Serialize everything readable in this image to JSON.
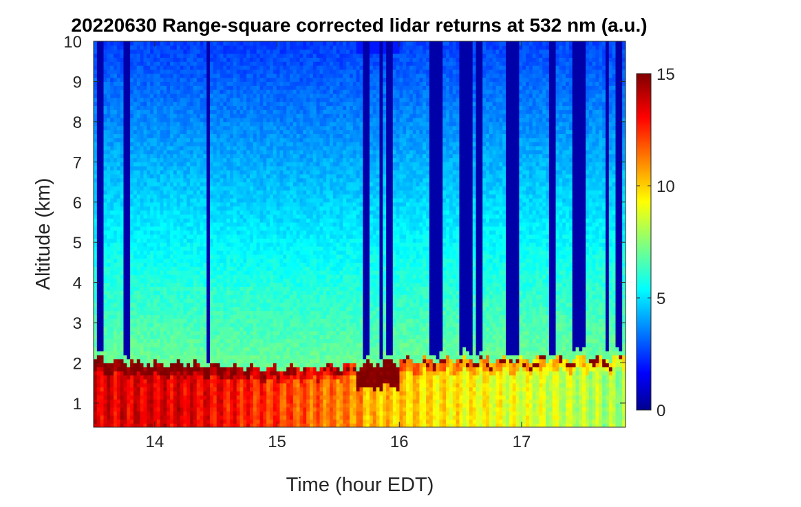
{
  "chart_data": {
    "type": "heatmap",
    "title": "20220630  Range-square corrected lidar returns at 532 nm (a.u.)",
    "xlabel": "Time (hour EDT)",
    "ylabel": "Altitude (km)",
    "xlim": [
      13.5,
      17.85
    ],
    "ylim": [
      0.4,
      10
    ],
    "xticks": [
      14,
      15,
      16,
      17
    ],
    "yticks": [
      1,
      2,
      3,
      4,
      5,
      6,
      7,
      8,
      9,
      10
    ],
    "colorbar": {
      "min": 0,
      "max": 15,
      "ticks": [
        0,
        5,
        10,
        15
      ],
      "colormap": "jet"
    },
    "boundary_layer_top_km": [
      {
        "t": 13.5,
        "h": 2.1
      },
      {
        "t": 14.0,
        "h": 2.0
      },
      {
        "t": 14.5,
        "h": 1.95
      },
      {
        "t": 15.0,
        "h": 1.85
      },
      {
        "t": 15.5,
        "h": 1.9
      },
      {
        "t": 16.0,
        "h": 2.05
      },
      {
        "t": 16.5,
        "h": 2.1
      },
      {
        "t": 17.0,
        "h": 2.1
      },
      {
        "t": 17.5,
        "h": 2.15
      },
      {
        "t": 17.85,
        "h": 2.15
      }
    ],
    "aerosol_layers": [
      {
        "t_start": 13.5,
        "t_end": 15.6,
        "bottom_km": 3.3,
        "top_km": 4.3,
        "value": 6.5
      },
      {
        "t_start": 15.6,
        "t_end": 17.85,
        "bottom_km": 3.5,
        "top_km": 4.1,
        "value": 5.5
      }
    ],
    "cloud_attenuation_times": [
      13.56,
      13.78,
      14.44,
      15.73,
      15.85,
      15.92,
      16.28,
      16.33,
      16.52,
      16.58,
      16.66,
      16.9,
      16.95,
      17.25,
      17.45,
      17.5,
      17.7,
      17.8
    ]
  }
}
